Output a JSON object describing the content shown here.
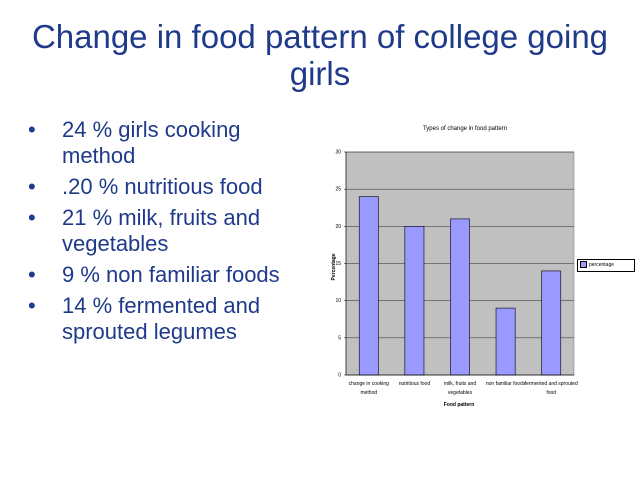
{
  "slide": {
    "title": "Change in food pattern of college going girls",
    "bullet_marker": "•",
    "bullets": [
      "24 % girls cooking method",
      ".20 % nutritious food",
      " 21 % milk, fruits and vegetables",
      "9 %  non familiar foods",
      "14 % fermented and sprouted legumes"
    ]
  },
  "colors": {
    "title": "#1f3a8a",
    "bar": "#9999ff",
    "plot_bg": "#c0c0c0"
  },
  "chart_data": {
    "type": "bar",
    "title": "Types of change in food pattern",
    "xlabel": "Food pattern",
    "ylabel": "Percentage",
    "categories": [
      [
        "change in cooking",
        "method"
      ],
      [
        "nutritious food"
      ],
      [
        "milk, fruits and",
        "vegetables"
      ],
      [
        "non familiar foods"
      ],
      [
        "fermented and sprouted",
        "food"
      ]
    ],
    "series": [
      {
        "name": "percentage",
        "values": [
          24,
          20,
          21,
          9,
          14
        ]
      }
    ],
    "ylim": [
      0,
      30
    ],
    "yticks": [
      0,
      5,
      10,
      15,
      20,
      25,
      30
    ],
    "grid": "horizontal",
    "legend": "right"
  }
}
